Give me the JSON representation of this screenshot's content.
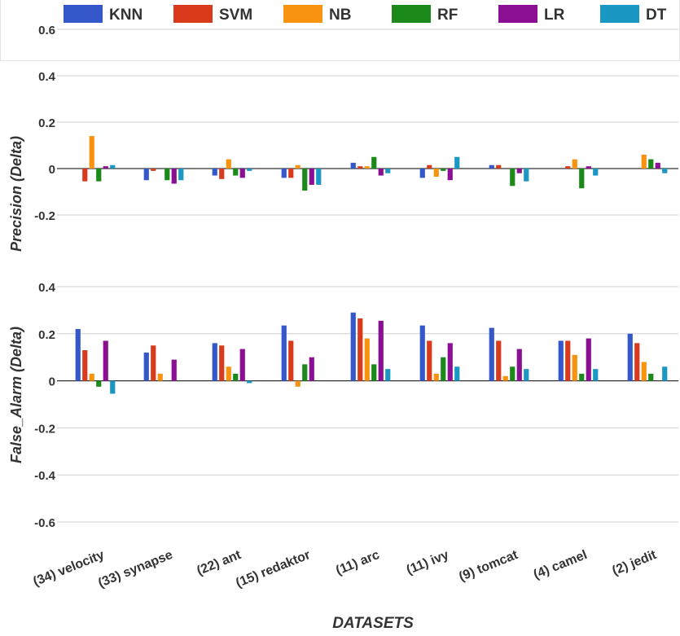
{
  "legend": [
    {
      "name": "KNN",
      "color": "#3457c9"
    },
    {
      "name": "SVM",
      "color": "#d93a1c"
    },
    {
      "name": "NB",
      "color": "#f7930f"
    },
    {
      "name": "RF",
      "color": "#1b8a1b"
    },
    {
      "name": "LR",
      "color": "#8a0f93"
    },
    {
      "name": "DT",
      "color": "#1b97c4"
    }
  ],
  "chart_data": [
    {
      "type": "bar",
      "ylabel": "Precision (Delta)",
      "ylim": [
        -0.2,
        0.6
      ],
      "yticks": [
        "0.6",
        "0.4",
        "0.2",
        "0",
        "-0.2"
      ],
      "grid": true,
      "legend_position": "top",
      "categories": [
        "(34) velocity",
        "(33) synapse",
        "(22) ant",
        "(15) redaktor",
        "(11) arc",
        "(11) ivy",
        "(9) tomcat",
        "(4) camel",
        "(2) jedit"
      ],
      "series": [
        {
          "name": "KNN",
          "values": [
            0,
            -0.05,
            -0.03,
            -0.04,
            0.025,
            -0.04,
            0.015,
            0,
            0
          ]
        },
        {
          "name": "SVM",
          "values": [
            -0.055,
            -0.01,
            -0.045,
            -0.04,
            0.01,
            0.015,
            0.015,
            0.01,
            0
          ]
        },
        {
          "name": "NB",
          "values": [
            0.14,
            0,
            0.04,
            0.015,
            0.01,
            -0.035,
            0,
            0.04,
            0.06
          ]
        },
        {
          "name": "RF",
          "values": [
            -0.055,
            -0.05,
            -0.03,
            -0.095,
            0.05,
            -0.01,
            -0.075,
            -0.085,
            0.04
          ]
        },
        {
          "name": "LR",
          "values": [
            0.01,
            -0.065,
            -0.04,
            -0.07,
            -0.03,
            -0.05,
            -0.02,
            0.01,
            0.025
          ]
        },
        {
          "name": "DT",
          "values": [
            0.015,
            -0.05,
            -0.01,
            -0.07,
            -0.02,
            0.05,
            -0.055,
            -0.03,
            -0.02
          ]
        }
      ]
    },
    {
      "type": "bar",
      "ylabel": "False_Alarm (Delta)",
      "xlabel": "DATASETS",
      "ylim": [
        -0.6,
        0.4
      ],
      "yticks": [
        "0.4",
        "0.2",
        "0",
        "-0.2",
        "-0.4",
        "-0.6"
      ],
      "grid": true,
      "categories": [
        "(34) velocity",
        "(33) synapse",
        "(22) ant",
        "(15) redaktor",
        "(11) arc",
        "(11) ivy",
        "(9) tomcat",
        "(4) camel",
        "(2) jedit"
      ],
      "series": [
        {
          "name": "KNN",
          "values": [
            0.22,
            0.12,
            0.16,
            0.235,
            0.29,
            0.235,
            0.225,
            0.17,
            0.2
          ]
        },
        {
          "name": "SVM",
          "values": [
            0.13,
            0.15,
            0.15,
            0.17,
            0.265,
            0.17,
            0.17,
            0.17,
            0.16
          ]
        },
        {
          "name": "NB",
          "values": [
            0.03,
            0.03,
            0.06,
            -0.025,
            0.18,
            0.03,
            0.02,
            0.11,
            0.08
          ]
        },
        {
          "name": "RF",
          "values": [
            -0.025,
            0,
            0.03,
            0.07,
            0.07,
            0.1,
            0.06,
            0.03,
            0.03
          ]
        },
        {
          "name": "LR",
          "values": [
            0.17,
            0.09,
            0.135,
            0.1,
            0.255,
            0.16,
            0.135,
            0.18,
            0
          ]
        },
        {
          "name": "DT",
          "values": [
            -0.055,
            0,
            -0.01,
            0,
            0.05,
            0.06,
            0.05,
            0.05,
            0.06
          ]
        }
      ]
    }
  ]
}
